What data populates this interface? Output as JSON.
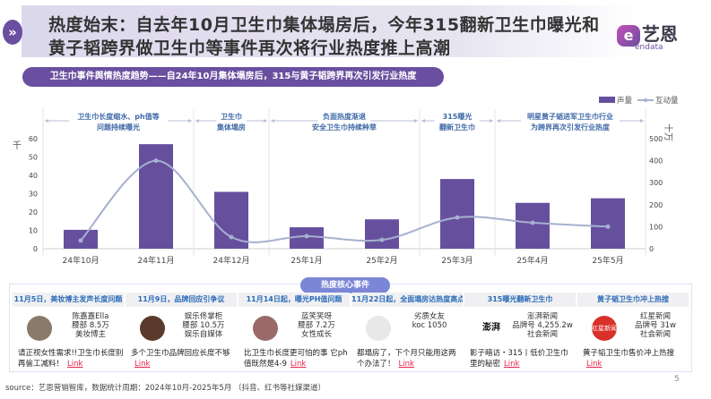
{
  "header": {
    "title_line1": "热度始末：自去年10月卫生巾集体塌房后，今年315翻新卫生巾曝光和",
    "title_line2": "黄子韬跨界做卫生巾等事件再次将行业热度推上高潮",
    "logo_cn": "艺恩",
    "logo_en": "endata",
    "chevron_icon": "double-chevron-right-icon"
  },
  "subtitle": "卫生巾事件舆情热度趋势——自24年10月集体塌房后，315与黄子韬跨界再次引发行业热度",
  "chart_data": {
    "type": "bar+line",
    "categories": [
      "24年10月",
      "24年11月",
      "24年12月",
      "25年1月",
      "25年2月",
      "25年3月",
      "25年4月",
      "25年5月"
    ],
    "series": [
      {
        "name": "声量",
        "type": "bar",
        "axis": "left",
        "color": "#66509e",
        "values": [
          10.3,
          57,
          31,
          11.7,
          16,
          38,
          25,
          27.5
        ]
      },
      {
        "name": "互动量",
        "type": "line",
        "axis": "right",
        "color": "#a7b0d0",
        "values": [
          37,
          400,
          53,
          57,
          40,
          142,
          118,
          100
        ]
      }
    ],
    "y_left": {
      "label": "千",
      "ticks": [
        0,
        10,
        20,
        30,
        40,
        50,
        60
      ],
      "range": [
        0,
        60
      ]
    },
    "y_right": {
      "label": "十万",
      "ticks": [
        0,
        100,
        200,
        300,
        400,
        500
      ],
      "range": [
        0,
        500
      ]
    },
    "legend": "top-right",
    "annotations": [
      {
        "lines": [
          "卫生巾长度缩水、ph值等",
          "问题持续曝光"
        ],
        "from": 0,
        "to": 2
      },
      {
        "lines": [
          "卫生巾",
          "集体塌房"
        ],
        "from": 2,
        "to": 3
      },
      {
        "lines": [
          "负面热度渐退",
          "安全卫生巾持续种草"
        ],
        "from": 3,
        "to": 5
      },
      {
        "lines": [
          "315曝光",
          "翻新卫生巾"
        ],
        "from": 5,
        "to": 6
      },
      {
        "lines": [
          "明星黄子韬进军卫生巾行业",
          "为跨界再次引发行业热度"
        ],
        "from": 6,
        "to": 8
      }
    ]
  },
  "events": {
    "title": "热度核心事件",
    "cards": [
      {
        "header": "11月5日，美妆博主发声长度问题",
        "name": "陈嘉嘉Ella",
        "stat": "腰部 8.5万",
        "type": "美妆博主",
        "desc": "请正视女性需求!!卫生巾长度别再偷工减料！",
        "link": "Link",
        "avatar_color": "#8a7a6a"
      },
      {
        "header": "11月9日，品牌回应引争议",
        "name": "娱乐佟掌柜",
        "stat": "腰部 10.5万",
        "type": "娱乐自媒体",
        "desc": "多个卫生巾品牌回应长度不够",
        "link": "Link",
        "avatar_color": "#5a3a2a"
      },
      {
        "header": "11月14日起，曝光PH值问题",
        "name": "蓝笑笑呀",
        "stat": "腰部 7.2万",
        "type": "女性成长",
        "desc": "比卫生巾长度更可怕的事 它ph值既然是4-9",
        "link": "Link",
        "avatar_color": "#9a6a6a"
      },
      {
        "header": "11月22日起，全面塌房达热度高点",
        "name": "劣质女友",
        "stat": "koc 1050",
        "type": "",
        "desc": "都塌房了，下个月只能用这两个办法了！",
        "link": "Link",
        "avatar_color": "#e8e8e8"
      },
      {
        "header": "315曝光翻新卫生巾",
        "name": "澎湃新闻",
        "stat": "品牌号 4,255.2w",
        "type": "社会新闻",
        "desc": "影子暗访・315丨低价卫生巾里的秘密",
        "link": "Link",
        "avatar_color": "#ffffff",
        "avatar_text": "澎湃"
      },
      {
        "header": "黄子韬卫生巾冲上热搜",
        "name": "红星新闻",
        "stat": "品牌号 31w",
        "type": "社会新闻",
        "desc": "黄子韬卫生巾售价冲上热搜",
        "link": "Link",
        "avatar_color": "#d8312a",
        "avatar_text": "红星新闻"
      }
    ]
  },
  "source": "source：艺恩营销智库，数据统计周期：2024年10月-2025年5月 （抖音、红书等社媒渠道）",
  "page_number": "5"
}
